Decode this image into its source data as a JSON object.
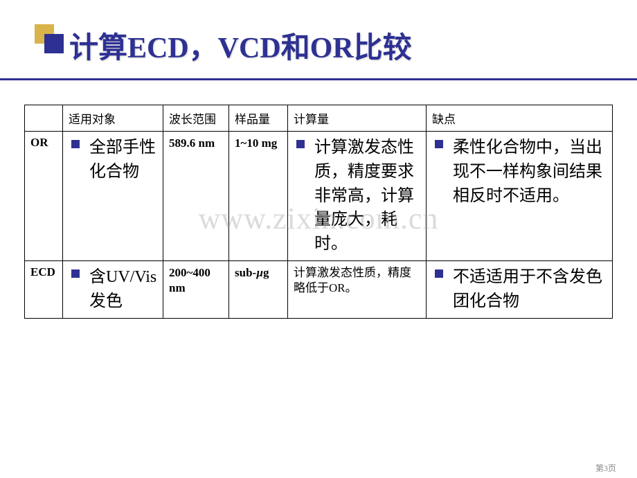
{
  "title": "计算ECD，VCD和OR比较",
  "watermark": "www.zixin.com.cn",
  "page_number": "第3页",
  "headers": {
    "target": "适用对象",
    "wavelength": "波长范围",
    "sample": "样品量",
    "calculation": "计算量",
    "drawback": "缺点"
  },
  "rows": {
    "or": {
      "label": "OR",
      "target": "全部手性化合物",
      "wavelength": "589.6 nm",
      "sample": "1~10 mg",
      "calculation": "计算激发态性质，精度要求非常高，计算量庞大，耗时。",
      "drawback": "柔性化合物中，当出现不一样构象间结果相反时不适用。"
    },
    "ecd": {
      "label": "ECD",
      "target": "含UV/Vis发色",
      "wavelength": "200~400 nm",
      "sample_prefix": "sub-",
      "sample_suffix": "g",
      "sample_mu": "µ",
      "calculation": "计算激发态性质，精度略低于OR。",
      "drawback": "不适适用于不含发色团化合物"
    }
  },
  "colors": {
    "title_color": "#2e3192",
    "bullet_color": "#2e3192",
    "deco_gold": "#d9b44a",
    "border_color": "#000000",
    "background": "#ffffff"
  }
}
